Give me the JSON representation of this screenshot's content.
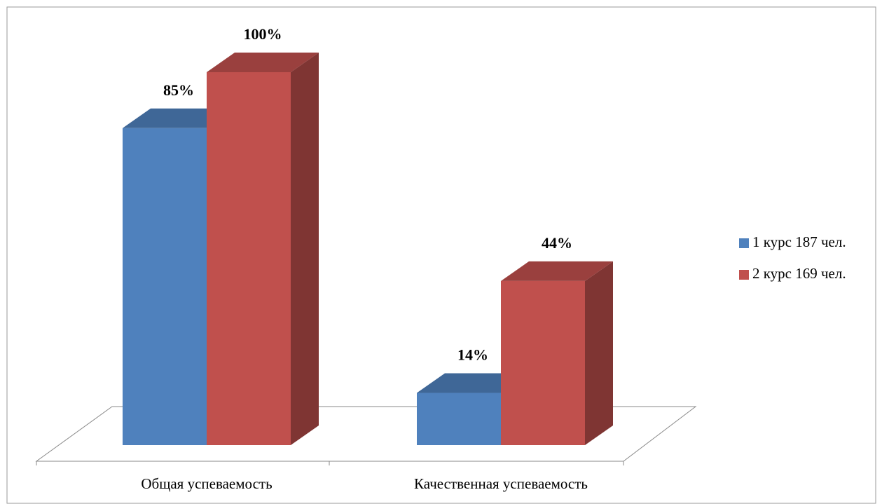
{
  "chart_data": {
    "type": "bar3d",
    "categories": [
      "Общая успеваемость",
      "Качественная успеваемость"
    ],
    "series": [
      {
        "name": "1 курс 187 чел.",
        "color": "#4f81bd",
        "values": [
          85,
          14
        ],
        "value_labels": [
          "85%",
          "14%"
        ]
      },
      {
        "name": "2 курс 169 чел.",
        "color": "#c0504d",
        "values": [
          100,
          44
        ],
        "value_labels": [
          "100%",
          "44%"
        ]
      }
    ],
    "legend": "right"
  }
}
